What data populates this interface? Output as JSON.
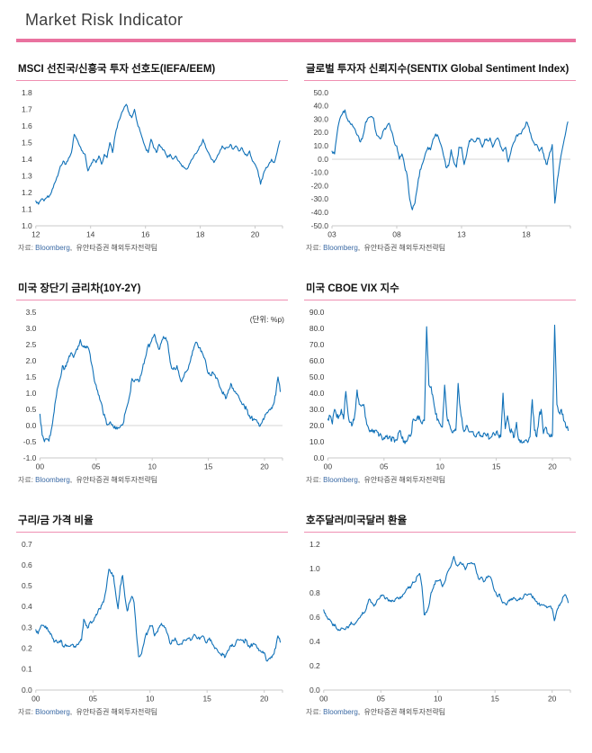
{
  "page": {
    "title": "Market Risk Indicator",
    "source_prefix": "자료: ",
    "source_bloomberg": "Bloomberg",
    "source_rest": ",  유안타증권 해외투자전략팀"
  },
  "colors": {
    "line_blue": "#1071b8",
    "accent_pink": "#e9729f",
    "rule_pink": "#ef8fb2",
    "axis_gray": "#c9c9c9",
    "tick_text": "#3f3f3f"
  },
  "chart_data": [
    {
      "type": "line",
      "title": "MSCI 선진국/신흥국 투자 선호도(IEFA/EEM)",
      "legend": false,
      "grid": false,
      "xlim": [
        2012,
        2021.0
      ],
      "ylim": [
        1.0,
        1.8
      ],
      "xticks": [
        [
          2012,
          "12"
        ],
        [
          2014,
          "14"
        ],
        [
          2016,
          "16"
        ],
        [
          2018,
          "18"
        ],
        [
          2020,
          "20"
        ]
      ],
      "yticks": [
        [
          1.8,
          "1.8"
        ],
        [
          1.7,
          "1.7"
        ],
        [
          1.6,
          "1.6"
        ],
        [
          1.5,
          "1.5"
        ],
        [
          1.4,
          "1.4"
        ],
        [
          1.3,
          "1.3"
        ],
        [
          1.2,
          "1.2"
        ],
        [
          1.1,
          "1.1"
        ],
        [
          1.0,
          "1.0"
        ]
      ],
      "zero_line": false,
      "x_start": 2012.0,
      "x_step": 0.1,
      "values": [
        1.15,
        1.13,
        1.16,
        1.15,
        1.17,
        1.18,
        1.22,
        1.26,
        1.3,
        1.36,
        1.39,
        1.37,
        1.41,
        1.44,
        1.55,
        1.52,
        1.48,
        1.45,
        1.43,
        1.33,
        1.36,
        1.4,
        1.38,
        1.42,
        1.37,
        1.43,
        1.41,
        1.5,
        1.44,
        1.55,
        1.62,
        1.66,
        1.7,
        1.73,
        1.68,
        1.65,
        1.7,
        1.62,
        1.57,
        1.52,
        1.47,
        1.44,
        1.52,
        1.47,
        1.44,
        1.49,
        1.47,
        1.45,
        1.41,
        1.43,
        1.4,
        1.42,
        1.39,
        1.37,
        1.35,
        1.34,
        1.37,
        1.4,
        1.43,
        1.45,
        1.48,
        1.52,
        1.47,
        1.44,
        1.4,
        1.38,
        1.41,
        1.44,
        1.48,
        1.46,
        1.47,
        1.49,
        1.46,
        1.48,
        1.45,
        1.47,
        1.44,
        1.42,
        1.45,
        1.39,
        1.37,
        1.33,
        1.25,
        1.31,
        1.35,
        1.37,
        1.4,
        1.38,
        1.44,
        1.51
      ]
    },
    {
      "type": "line",
      "title": "글로벌 투자자 신뢰지수(SENTIX  Global Sentiment Index)",
      "legend": false,
      "grid": false,
      "xlim": [
        2003,
        2021.4
      ],
      "ylim": [
        -50,
        50
      ],
      "xticks": [
        [
          2003,
          "03"
        ],
        [
          2008,
          "08"
        ],
        [
          2013,
          "13"
        ],
        [
          2018,
          "18"
        ]
      ],
      "yticks": [
        [
          50,
          "50.0"
        ],
        [
          40,
          "40.0"
        ],
        [
          30,
          "30.0"
        ],
        [
          20,
          "20.0"
        ],
        [
          10,
          "10.0"
        ],
        [
          0,
          "0.0"
        ],
        [
          -10,
          "-10.0"
        ],
        [
          -20,
          "-20.0"
        ],
        [
          -30,
          "-30.0"
        ],
        [
          -40,
          "-40.0"
        ],
        [
          -50,
          "-50.0"
        ]
      ],
      "zero_line": true,
      "x_start": 2003.0,
      "x_step": 0.2,
      "values": [
        6,
        4,
        20,
        30,
        34,
        37,
        30,
        27,
        25,
        22,
        18,
        13,
        18,
        28,
        31,
        32,
        31,
        20,
        17,
        16,
        22,
        24,
        27,
        21,
        13,
        10,
        0,
        4,
        -5,
        -12,
        -30,
        -38,
        -33,
        -20,
        -8,
        -3,
        4,
        9,
        7,
        15,
        19,
        17,
        11,
        3,
        -6,
        -5,
        7,
        -2,
        -6,
        9,
        9,
        -4,
        4,
        14,
        15,
        13,
        16,
        15,
        9,
        15,
        14,
        16,
        9,
        14,
        16,
        10,
        6,
        9,
        -2,
        5,
        12,
        17,
        19,
        19,
        23,
        28,
        24,
        16,
        12,
        11,
        6,
        9,
        0,
        -4,
        5,
        11,
        -33,
        -15,
        -2,
        9,
        18,
        28
      ]
    },
    {
      "type": "line",
      "title": "미국 장단기 금리차(10Y-2Y)",
      "unit": "(단위: %p)",
      "legend": false,
      "grid": false,
      "xlim": [
        2000,
        2021.6
      ],
      "ylim": [
        -1.0,
        3.5
      ],
      "xticks": [
        [
          2000,
          "00"
        ],
        [
          2005,
          "05"
        ],
        [
          2010,
          "10"
        ],
        [
          2015,
          "15"
        ],
        [
          2020,
          "20"
        ]
      ],
      "yticks": [
        [
          3.5,
          "3.5"
        ],
        [
          3.0,
          "3.0"
        ],
        [
          2.5,
          "2.5"
        ],
        [
          2.0,
          "2.0"
        ],
        [
          1.5,
          "1.5"
        ],
        [
          1.0,
          "1.0"
        ],
        [
          0.5,
          "0.5"
        ],
        [
          0.0,
          "0.0"
        ],
        [
          -0.5,
          "-0.5"
        ],
        [
          -1.0,
          "-1.0"
        ]
      ],
      "zero_line": true,
      "x_start": 2000.0,
      "x_step": 0.2,
      "values": [
        0.35,
        -0.3,
        -0.5,
        -0.42,
        -0.48,
        -0.15,
        0.3,
        0.8,
        1.2,
        1.45,
        1.85,
        1.75,
        1.95,
        2.15,
        2.25,
        2.1,
        2.3,
        2.45,
        2.65,
        2.45,
        2.4,
        2.45,
        2.3,
        1.9,
        1.5,
        1.25,
        0.95,
        0.75,
        0.45,
        0.25,
        0.02,
        0.08,
        0.02,
        -0.08,
        -0.05,
        -0.08,
        0,
        0.05,
        0.4,
        0.65,
        0.95,
        1.45,
        1.35,
        1.4,
        1.35,
        1.55,
        1.9,
        2.1,
        2.45,
        2.5,
        2.7,
        2.82,
        2.55,
        2.35,
        2.55,
        2.75,
        2.72,
        2.5,
        1.95,
        1.75,
        1.75,
        1.85,
        1.55,
        1.35,
        1.5,
        1.65,
        1.75,
        2.0,
        2.3,
        2.5,
        2.55,
        2.4,
        2.3,
        2.1,
        1.9,
        1.6,
        1.55,
        1.65,
        1.55,
        1.45,
        1.2,
        1.05,
        0.95,
        0.85,
        1.1,
        1.3,
        1.15,
        1.05,
        0.95,
        0.8,
        0.65,
        0.6,
        0.5,
        0.3,
        0.25,
        0.18,
        0.18,
        0.08,
        -0.02,
        0.12,
        0.25,
        0.4,
        0.48,
        0.55,
        0.65,
        0.95,
        1.5,
        1.05
      ]
    },
    {
      "type": "line",
      "title": "미국 CBOE VIX 지수",
      "legend": false,
      "grid": false,
      "xlim": [
        2000,
        2021.6
      ],
      "ylim": [
        0,
        90
      ],
      "xticks": [
        [
          2000,
          "00"
        ],
        [
          2005,
          "05"
        ],
        [
          2010,
          "10"
        ],
        [
          2015,
          "15"
        ],
        [
          2020,
          "20"
        ]
      ],
      "yticks": [
        [
          90,
          "90.0"
        ],
        [
          80,
          "80.0"
        ],
        [
          70,
          "70.0"
        ],
        [
          60,
          "60.0"
        ],
        [
          50,
          "50.0"
        ],
        [
          40,
          "40.0"
        ],
        [
          30,
          "30.0"
        ],
        [
          20,
          "20.0"
        ],
        [
          10,
          "10.0"
        ],
        [
          0,
          "0.0"
        ]
      ],
      "zero_line": false,
      "x_start": 2000.0,
      "x_step": 0.2,
      "values": [
        24,
        26,
        21,
        30,
        25,
        26,
        30,
        24,
        41,
        27,
        22,
        21,
        27,
        42,
        33,
        32,
        33,
        24,
        19,
        17,
        16,
        17,
        16,
        14,
        13,
        12.5,
        13,
        12,
        11.5,
        12.5,
        11,
        12,
        17,
        12,
        10.5,
        10,
        14,
        14,
        24,
        23,
        26,
        24,
        21,
        23,
        81,
        45,
        44,
        36,
        27,
        24,
        21,
        19,
        45,
        26,
        21,
        17,
        17,
        17,
        46,
        30,
        20,
        17,
        20,
        16,
        16,
        14,
        13,
        16,
        14,
        13,
        15,
        15,
        12,
        13,
        15,
        16,
        14,
        13,
        40,
        18,
        26,
        17,
        16,
        13,
        22,
        11,
        11,
        10,
        11,
        9.5,
        13,
        36,
        17,
        13,
        25,
        30,
        15,
        19,
        15,
        13,
        14,
        82,
        33,
        28,
        30,
        23,
        19,
        17
      ]
    },
    {
      "type": "line",
      "title": "구리/금 가격 비율",
      "legend": false,
      "grid": false,
      "xlim": [
        2000,
        2021.6
      ],
      "ylim": [
        0,
        0.7
      ],
      "xticks": [
        [
          2000,
          "00"
        ],
        [
          2005,
          "05"
        ],
        [
          2010,
          "10"
        ],
        [
          2015,
          "15"
        ],
        [
          2020,
          "20"
        ]
      ],
      "yticks": [
        [
          0.7,
          "0.7"
        ],
        [
          0.6,
          "0.6"
        ],
        [
          0.5,
          "0.5"
        ],
        [
          0.4,
          "0.4"
        ],
        [
          0.3,
          "0.3"
        ],
        [
          0.2,
          "0.2"
        ],
        [
          0.1,
          "0.1"
        ],
        [
          0.0,
          "0.0"
        ]
      ],
      "zero_line": false,
      "x_start": 2000.0,
      "x_step": 0.2,
      "values": [
        0.29,
        0.27,
        0.3,
        0.31,
        0.3,
        0.3,
        0.28,
        0.26,
        0.23,
        0.24,
        0.23,
        0.24,
        0.21,
        0.22,
        0.21,
        0.21,
        0.22,
        0.21,
        0.22,
        0.23,
        0.24,
        0.34,
        0.31,
        0.3,
        0.33,
        0.33,
        0.35,
        0.37,
        0.39,
        0.41,
        0.44,
        0.5,
        0.58,
        0.56,
        0.55,
        0.46,
        0.39,
        0.5,
        0.55,
        0.45,
        0.38,
        0.42,
        0.45,
        0.42,
        0.28,
        0.16,
        0.17,
        0.21,
        0.26,
        0.28,
        0.31,
        0.31,
        0.26,
        0.28,
        0.3,
        0.32,
        0.31,
        0.29,
        0.26,
        0.22,
        0.24,
        0.25,
        0.22,
        0.22,
        0.22,
        0.24,
        0.24,
        0.25,
        0.24,
        0.26,
        0.26,
        0.25,
        0.25,
        0.26,
        0.24,
        0.23,
        0.25,
        0.23,
        0.21,
        0.2,
        0.18,
        0.17,
        0.17,
        0.16,
        0.19,
        0.21,
        0.22,
        0.21,
        0.24,
        0.24,
        0.24,
        0.23,
        0.24,
        0.21,
        0.21,
        0.22,
        0.22,
        0.2,
        0.19,
        0.18,
        0.18,
        0.14,
        0.15,
        0.16,
        0.17,
        0.2,
        0.26,
        0.23
      ]
    },
    {
      "type": "line",
      "title": "호주달러/미국달러  환율",
      "legend": false,
      "grid": false,
      "xlim": [
        2000,
        2021.6
      ],
      "ylim": [
        0,
        1.2
      ],
      "xticks": [
        [
          2000,
          "00"
        ],
        [
          2005,
          "05"
        ],
        [
          2010,
          "10"
        ],
        [
          2015,
          "15"
        ],
        [
          2020,
          "20"
        ]
      ],
      "yticks": [
        [
          1.2,
          "1.2"
        ],
        [
          1.0,
          "1.0"
        ],
        [
          0.8,
          "0.8"
        ],
        [
          0.6,
          "0.6"
        ],
        [
          0.4,
          "0.4"
        ],
        [
          0.2,
          "0.2"
        ],
        [
          0.0,
          "0.0"
        ]
      ],
      "zero_line": false,
      "x_start": 2000.0,
      "x_step": 0.2,
      "values": [
        0.66,
        0.61,
        0.58,
        0.57,
        0.53,
        0.54,
        0.5,
        0.49,
        0.51,
        0.5,
        0.52,
        0.52,
        0.56,
        0.54,
        0.55,
        0.58,
        0.6,
        0.64,
        0.64,
        0.7,
        0.75,
        0.72,
        0.69,
        0.72,
        0.75,
        0.78,
        0.78,
        0.75,
        0.75,
        0.73,
        0.74,
        0.73,
        0.76,
        0.75,
        0.77,
        0.79,
        0.82,
        0.85,
        0.84,
        0.89,
        0.89,
        0.94,
        0.96,
        0.85,
        0.62,
        0.64,
        0.69,
        0.8,
        0.84,
        0.9,
        0.9,
        0.91,
        0.85,
        0.89,
        0.96,
        1.0,
        1.04,
        1.1,
        1.03,
        1.03,
        1.05,
        1.04,
        0.99,
        1.04,
        1.04,
        1.04,
        1.04,
        0.96,
        0.91,
        0.93,
        0.89,
        0.92,
        0.94,
        0.93,
        0.87,
        0.81,
        0.77,
        0.79,
        0.73,
        0.72,
        0.7,
        0.74,
        0.74,
        0.76,
        0.75,
        0.74,
        0.76,
        0.75,
        0.79,
        0.78,
        0.79,
        0.78,
        0.75,
        0.73,
        0.71,
        0.7,
        0.7,
        0.69,
        0.68,
        0.69,
        0.67,
        0.57,
        0.65,
        0.7,
        0.72,
        0.77,
        0.78,
        0.72
      ]
    }
  ]
}
